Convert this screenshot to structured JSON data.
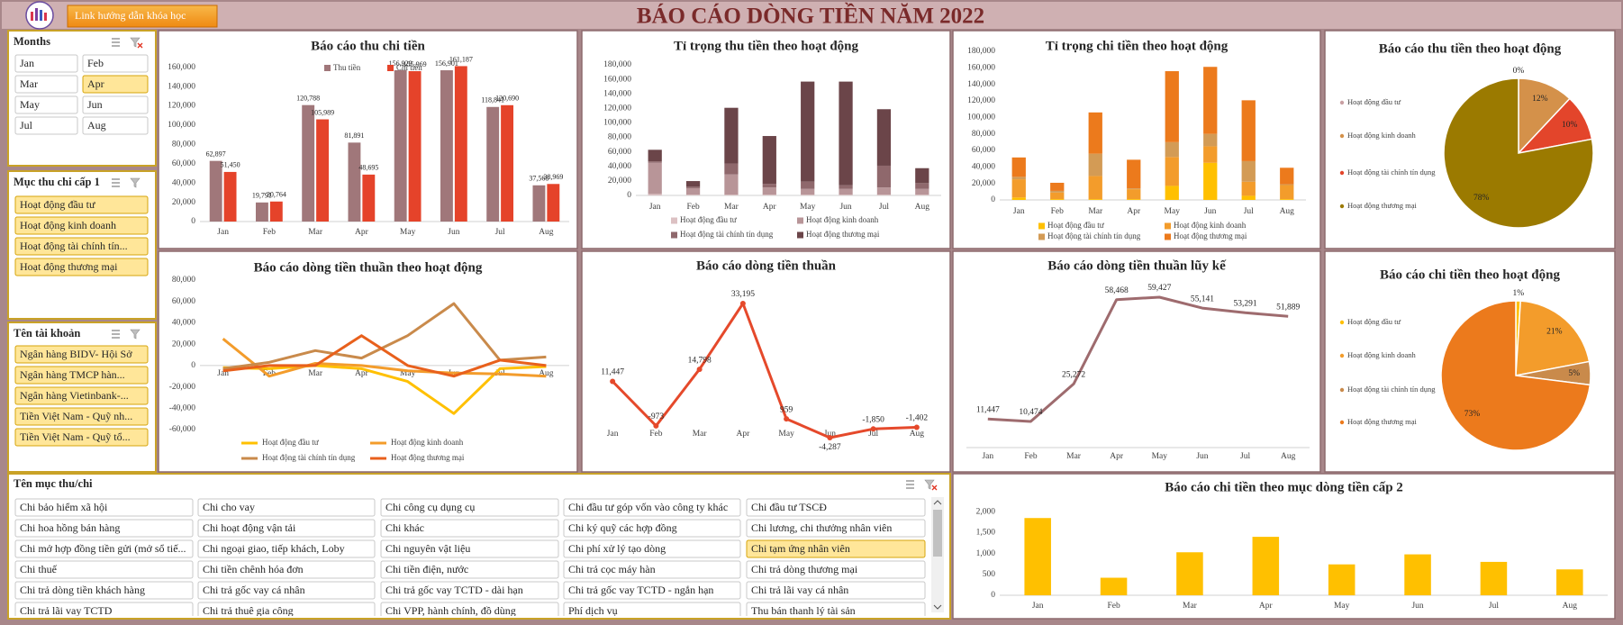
{
  "header": {
    "title": "BÁO CÁO DÒNG TIỀN NĂM 2022",
    "link_button": "Link hướng dẫn khóa học"
  },
  "slicers": [
    {
      "title": "Months",
      "items": [
        "Jan",
        "Feb",
        "Mar",
        "Apr",
        "May",
        "Jun",
        "Jul",
        "Aug"
      ],
      "selected": [
        3
      ]
    },
    {
      "title": "Mục thu chi cấp 1",
      "items": [
        "Hoạt động đầu tư",
        "Hoạt động kinh doanh",
        "Hoạt động tài chính tín...",
        "Hoạt động thương mại"
      ],
      "selected": [
        0,
        1,
        2,
        3
      ]
    },
    {
      "title": "Tên tài khoản",
      "items": [
        "Ngân hàng BIDV- Hội Sở",
        "Ngân hàng TMCP hàn...",
        "Ngân hàng Vietinbank-...",
        "Tiền Việt Nam - Quỹ nh...",
        "Tiền Việt Nam - Quỹ tổ..."
      ],
      "selected": [
        0,
        1,
        2,
        3,
        4
      ]
    },
    {
      "title": "Tên mục thu/chi",
      "items": [
        "Chi bảo hiểm xã hội",
        "Chi cho vay",
        "Chi công cụ dụng cụ",
        "Chi đầu tư góp vốn vào công ty khác",
        "Chi đầu tư TSCĐ",
        "Chi hoa hồng bán hàng",
        "Chi hoạt động vận tải",
        "Chi khác",
        "Chi ký quỹ các hợp đồng",
        "Chi lương, chi thưởng nhân viên",
        "Chi mở hợp đồng tiền gửi (mở sổ tiế...",
        "Chi ngoại giao, tiếp khách, Loby",
        "Chi nguyên vật liệu",
        "Chi phí xử lý tạo dòng",
        "Chi tạm ứng nhân viên",
        "Chi thuế",
        "Chi tiền chênh hóa đơn",
        "Chi tiền điện, nước",
        "Chi trả cọc máy hàn",
        "Chi trả dòng thương mại",
        "Chi trả dòng tiền khách hàng",
        "Chi trả gốc vay cá nhân",
        "Chi trả gốc vay TCTD - dài hạn",
        "Chi trả gốc vay TCTD - ngắn hạn",
        "Chi trả lãi vay cá nhân",
        "Chi trả lãi vay TCTD",
        "Chi trả thuê gia công",
        "Chi VPP, hành chính, đồ dùng",
        "Phí dịch vụ",
        "Thu bán thanh lý tài sản"
      ],
      "selected": [
        14
      ]
    }
  ],
  "chart_data": [
    {
      "type": "bar",
      "title": "Báo cáo thu chi tiền",
      "categories": [
        "Jan",
        "Feb",
        "Mar",
        "Apr",
        "May",
        "Jun",
        "Jul",
        "Aug"
      ],
      "series": [
        {
          "name": "Thu tiền",
          "color": "#a0777a",
          "values": [
            62897,
            19791,
            120788,
            81891,
            156929,
            156901,
            118841,
            37568
          ],
          "value_labels": [
            "62,897",
            "19,791",
            "120,788",
            "81,891",
            "156,929",
            "156,901",
            "118,841",
            "37,568"
          ]
        },
        {
          "name": "Chi tiền",
          "color": "#e5432a",
          "values": [
            51450,
            20764,
            105989,
            48695,
            155969,
            161187,
            120690,
            38969
          ],
          "value_labels": [
            "51,450",
            "20,764",
            "105,989",
            "48,695",
            "155,969",
            "161,187",
            "120,690",
            "38,969"
          ]
        }
      ],
      "ylim": [
        0,
        170000
      ],
      "yticks": [
        0,
        {
          "value": 20000,
          "label": "20,000"
        },
        {
          "value": 40000,
          "label": "40,000"
        },
        {
          "value": 60000,
          "label": "60,000"
        },
        {
          "value": 80000,
          "label": "80,000"
        },
        {
          "value": 100000,
          "label": "100,000"
        },
        {
          "value": 120000,
          "label": "120,000"
        },
        {
          "value": 140000,
          "label": "140,000"
        },
        {
          "value": 160000,
          "label": "160,000"
        }
      ],
      "legend": "top",
      "grid": false
    },
    {
      "type": "stacked_bar",
      "title": "Tỉ trọng thu tiền theo hoạt động",
      "categories": [
        "Jan",
        "Feb",
        "Mar",
        "Apr",
        "May",
        "Jun",
        "Jul",
        "Aug"
      ],
      "series": [
        {
          "name": "Hoạt động đầu tư",
          "color": "#dcc1c3",
          "values": [
            2000,
            1000,
            1000,
            1000,
            1000,
            1000,
            1000,
            1000
          ]
        },
        {
          "name": "Hoạt động kinh doanh",
          "color": "#b89598",
          "values": [
            43000,
            9000,
            28000,
            10000,
            8000,
            8000,
            10000,
            8000
          ]
        },
        {
          "name": "Hoạt động tài chính tín dụng",
          "color": "#8f686c",
          "values": [
            2000,
            2000,
            15000,
            5000,
            10000,
            5000,
            30000,
            8000
          ]
        },
        {
          "name": "Hoạt động thương mại",
          "color": "#6b4549",
          "values": [
            15897,
            7791,
            76788,
            65891,
            137929,
            142901,
            77841,
            20568
          ]
        }
      ],
      "ylim": [
        0,
        180000
      ],
      "yticks": [
        0,
        {
          "value": 20000,
          "label": "20,000"
        },
        {
          "value": 40000,
          "label": "40,000"
        },
        {
          "value": 60000,
          "label": "60,000"
        },
        {
          "value": 80000,
          "label": "80,000"
        },
        {
          "value": 100000,
          "label": "100,000"
        },
        {
          "value": 120000,
          "label": "120,000"
        },
        {
          "value": 140000,
          "label": "140,000"
        },
        {
          "value": 160000,
          "label": "160,000"
        },
        {
          "value": 180000,
          "label": "180,000"
        }
      ],
      "legend": "bottom",
      "grid": false
    },
    {
      "type": "stacked_bar",
      "title": "Tỉ trọng chi tiền theo hoạt động",
      "categories": [
        "Jan",
        "Feb",
        "Mar",
        "Apr",
        "May",
        "Jun",
        "Jul",
        "Aug"
      ],
      "series": [
        {
          "name": "Hoạt động đầu tư",
          "color": "#ffc000",
          "values": [
            3000,
            1000,
            1000,
            1000,
            17000,
            45000,
            5000,
            1000
          ]
        },
        {
          "name": "Hoạt động kinh doanh",
          "color": "#f39c2b",
          "values": [
            22000,
            8000,
            28000,
            12000,
            35000,
            20000,
            17000,
            17000
          ]
        },
        {
          "name": "Hoạt động tài chính tín dụng",
          "color": "#d39b55",
          "values": [
            3000,
            2000,
            27000,
            1000,
            18000,
            15000,
            25000,
            1000
          ]
        },
        {
          "name": "Hoạt động thương mại",
          "color": "#ec7a1c",
          "values": [
            23450,
            9764,
            49989,
            34695,
            85969,
            81187,
            73690,
            19969
          ]
        }
      ],
      "ylim": [
        0,
        180000
      ],
      "yticks": [
        0,
        {
          "value": 20000,
          "label": "20,000"
        },
        {
          "value": 40000,
          "label": "40,000"
        },
        {
          "value": 60000,
          "label": "60,000"
        },
        {
          "value": 80000,
          "label": "80,000"
        },
        {
          "value": 100000,
          "label": "100,000"
        },
        {
          "value": 120000,
          "label": "120,000"
        },
        {
          "value": 140000,
          "label": "140,000"
        },
        {
          "value": 160000,
          "label": "160,000"
        },
        {
          "value": 180000,
          "label": "180,000"
        }
      ],
      "legend": "bottom",
      "grid": false
    },
    {
      "type": "pie",
      "title": "Báo cáo thu tiền theo hoạt động",
      "categories": [
        "Hoạt động đầu tư",
        "Hoạt động kinh doanh",
        "Hoạt động tài chính tín dụng",
        "Hoạt động thương mại"
      ],
      "values": [
        0,
        12,
        10,
        78
      ],
      "value_labels": [
        "0%",
        "12%",
        "10%",
        "78%"
      ],
      "colors": [
        "#c9a0a3",
        "#d4914a",
        "#e3452b",
        "#9b7a00"
      ],
      "legend": "left"
    },
    {
      "type": "line",
      "title": "Báo cáo dòng tiền thuần theo hoạt động",
      "categories": [
        "Jan",
        "Feb",
        "Mar",
        "Apr",
        "May",
        "Jun",
        "Jul",
        "Aug"
      ],
      "series": [
        {
          "name": "Hoạt động đầu tư",
          "color": "#ffc000",
          "values": [
            -2000,
            -3000,
            0,
            -3000,
            -15000,
            -45000,
            -3000,
            -1000
          ]
        },
        {
          "name": "Hoạt động kinh doanh",
          "color": "#f39c2b",
          "values": [
            25000,
            -10000,
            2000,
            0,
            -5000,
            -7000,
            -8000,
            -10000
          ]
        },
        {
          "name": "Hoạt động tài chính tín dụng",
          "color": "#c98a4b",
          "values": [
            -3000,
            3000,
            14000,
            7000,
            28000,
            58000,
            5000,
            8000
          ]
        },
        {
          "name": "Hoạt động thương mại",
          "color": "#e8601c",
          "values": [
            -5000,
            0,
            0,
            28000,
            0,
            -10000,
            5000,
            0
          ]
        }
      ],
      "ylim": [
        -60000,
        80000
      ],
      "yticks": [
        {
          "value": -60000,
          "label": "-60,000"
        },
        {
          "value": -40000,
          "label": "-40,000"
        },
        {
          "value": -20000,
          "label": "-20,000"
        },
        0,
        {
          "value": 20000,
          "label": "20,000"
        },
        {
          "value": 40000,
          "label": "40,000"
        },
        {
          "value": 60000,
          "label": "60,000"
        },
        {
          "value": 80000,
          "label": "80,000"
        }
      ],
      "legend": "bottom",
      "grid": false
    },
    {
      "type": "line",
      "title": "Báo cáo dòng tiền thuần",
      "categories": [
        "Jan",
        "Feb",
        "Mar",
        "Apr",
        "May",
        "Jun",
        "Jul",
        "Aug"
      ],
      "values": [
        11447,
        -973,
        14798,
        33195,
        959,
        -4287,
        -1850,
        -1402
      ],
      "value_labels": [
        "11,447",
        "-973",
        "14,798",
        "33,195",
        "959",
        "-4,287",
        "-1,850",
        "-1,402"
      ],
      "color": "#e5492b",
      "markers": true
    },
    {
      "type": "line",
      "title": "Báo cáo dòng tiền thuần lũy kế",
      "categories": [
        "Jan",
        "Feb",
        "Mar",
        "Apr",
        "May",
        "Jun",
        "Jul",
        "Aug"
      ],
      "values": [
        11447,
        10474,
        25272,
        58468,
        59427,
        55141,
        53291,
        51889
      ],
      "value_labels": [
        "11,447",
        "10,474",
        "25,272",
        "58,468",
        "59,427",
        "55,141",
        "53,291",
        "51,889"
      ],
      "color": "#9e6b6e",
      "markers": false
    },
    {
      "type": "pie",
      "title": "Báo cáo chi tiền theo hoạt động",
      "categories": [
        "Hoạt động đầu tư",
        "Hoạt động kinh doanh",
        "Hoạt động tài chính tín dụng",
        "Hoạt động thương mại"
      ],
      "values": [
        1,
        21,
        5,
        73
      ],
      "value_labels": [
        "1%",
        "21%",
        "5%",
        "73%"
      ],
      "colors": [
        "#ffc000",
        "#f39c2b",
        "#c98a4b",
        "#ec7a1c"
      ],
      "legend": "left"
    },
    {
      "type": "bar",
      "title": "Báo cáo chi tiền theo mục dòng tiền cấp 2",
      "categories": [
        "Jan",
        "Feb",
        "Mar",
        "Apr",
        "May",
        "Jun",
        "Jul",
        "Aug"
      ],
      "values": [
        1850,
        420,
        1030,
        1400,
        740,
        980,
        800,
        620
      ],
      "color": "#ffc000",
      "ylim": [
        0,
        2200
      ],
      "yticks": [
        0,
        500,
        {
          "value": 1000,
          "label": "1,000"
        },
        {
          "value": 1500,
          "label": "1,500"
        },
        {
          "value": 2000,
          "label": "2,000"
        }
      ],
      "grid": false
    }
  ]
}
